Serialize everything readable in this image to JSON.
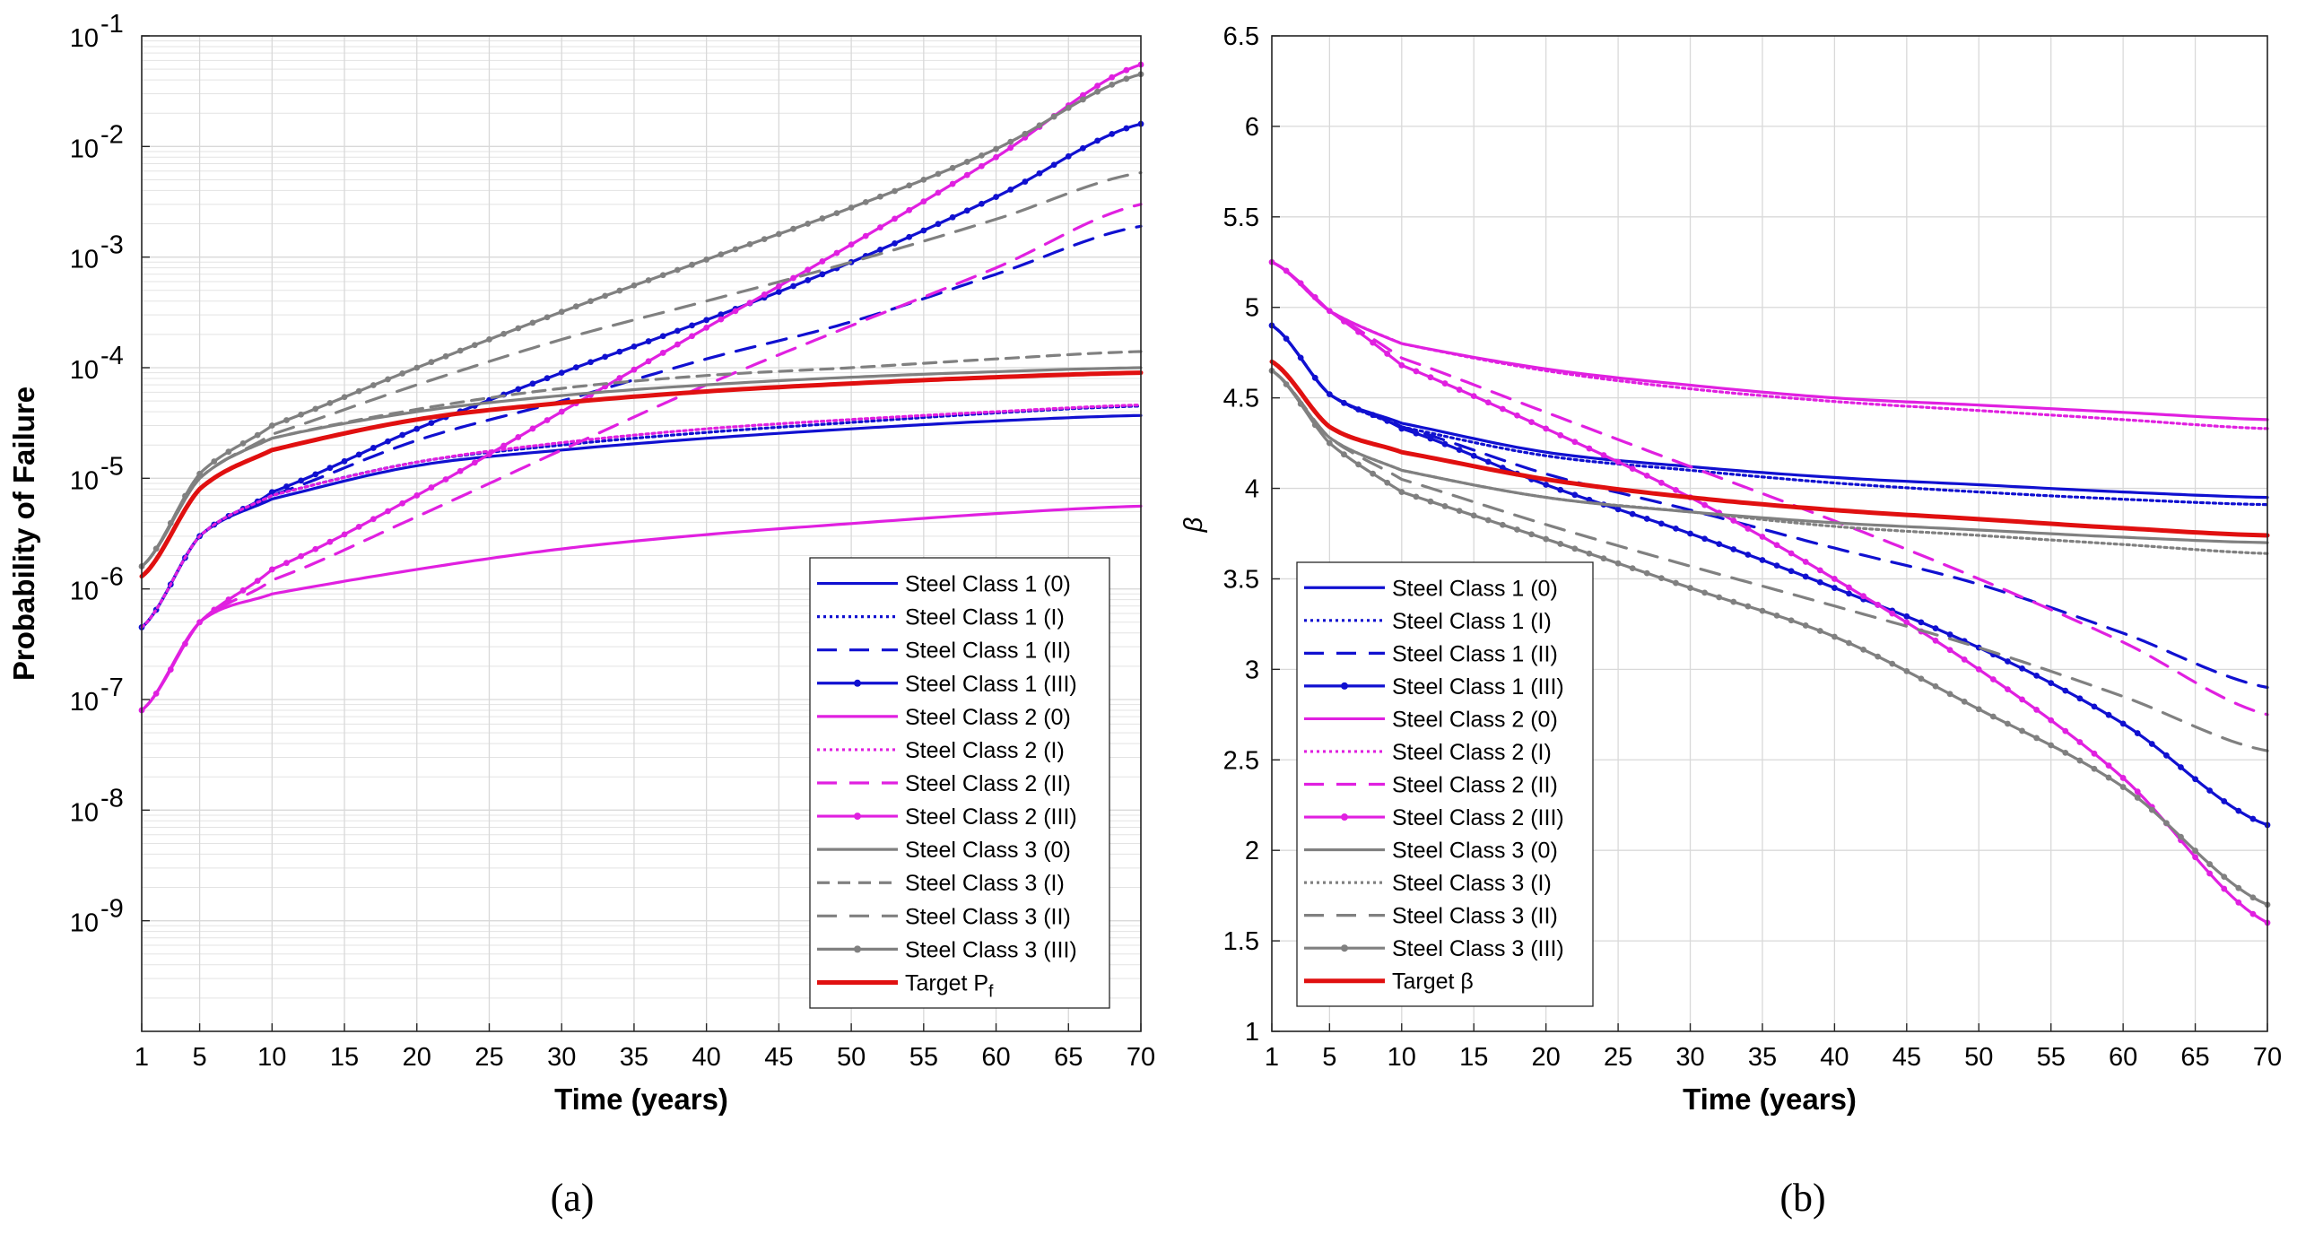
{
  "chart_data": [
    {
      "type": "line",
      "panel_label": "(a)",
      "xlabel": "Time (years)",
      "ylabel": "Probability of Failure",
      "yscale": "log",
      "xlim": [
        1,
        70
      ],
      "ylim": [
        1e-10,
        0.1
      ],
      "grid": true,
      "minor_grid": true,
      "legend_placement": "bottom-right",
      "x_ticks": [
        1,
        5,
        10,
        15,
        20,
        25,
        30,
        35,
        40,
        45,
        50,
        55,
        60,
        65,
        70
      ],
      "y_ticks": [
        {
          "value": 1e-09,
          "base": "10",
          "exp": "-9"
        },
        {
          "value": 1e-08,
          "base": "10",
          "exp": "-8"
        },
        {
          "value": 1e-07,
          "base": "10",
          "exp": "-7"
        },
        {
          "value": 1e-06,
          "base": "10",
          "exp": "-6"
        },
        {
          "value": 1e-05,
          "base": "10",
          "exp": "-5"
        },
        {
          "value": 0.0001,
          "base": "10",
          "exp": "-4"
        },
        {
          "value": 0.001,
          "base": "10",
          "exp": "-3"
        },
        {
          "value": 0.01,
          "base": "10",
          "exp": "-2"
        },
        {
          "value": 0.1,
          "base": "10",
          "exp": "-1"
        }
      ],
      "series": [
        {
          "name": "Steel Class 1 (0)",
          "color": "#1010d0",
          "style": "solid",
          "x": [
            1,
            5,
            10,
            20,
            30,
            40,
            50,
            60,
            70
          ],
          "y": [
            4.5e-07,
            3e-06,
            6.5e-06,
            1.3e-05,
            1.8e-05,
            2.3e-05,
            2.8e-05,
            3.3e-05,
            3.7e-05
          ]
        },
        {
          "name": "Steel Class 1 (I)",
          "color": "#1010d0",
          "style": "dotted",
          "x": [
            1,
            5,
            10,
            20,
            30,
            40,
            50,
            60,
            70
          ],
          "y": [
            4.5e-07,
            3e-06,
            7e-06,
            1.4e-05,
            2e-05,
            2.6e-05,
            3.2e-05,
            3.9e-05,
            4.5e-05
          ]
        },
        {
          "name": "Steel Class 1 (II)",
          "color": "#1010d0",
          "style": "dashed",
          "x": [
            1,
            5,
            10,
            20,
            30,
            40,
            50,
            60,
            70
          ],
          "y": [
            4.5e-07,
            3e-06,
            7e-06,
            2.2e-05,
            5e-05,
            0.00012,
            0.00026,
            0.0007,
            0.0019
          ]
        },
        {
          "name": "Steel Class 1 (III)",
          "color": "#1010d0",
          "style": "marker",
          "x": [
            1,
            5,
            10,
            20,
            30,
            40,
            50,
            60,
            70
          ],
          "y": [
            4.5e-07,
            3e-06,
            7.5e-06,
            2.8e-05,
            9e-05,
            0.00027,
            0.0009,
            0.0035,
            0.016
          ]
        },
        {
          "name": "Steel Class 2 (0)",
          "color": "#e020e0",
          "style": "solid",
          "x": [
            1,
            5,
            10,
            20,
            30,
            40,
            50,
            60,
            70
          ],
          "y": [
            8e-08,
            5e-07,
            9e-07,
            1.5e-06,
            2.3e-06,
            3.1e-06,
            3.9e-06,
            4.8e-06,
            5.6e-06
          ]
        },
        {
          "name": "Steel Class 2 (I)",
          "color": "#e020e0",
          "style": "dotted",
          "x": [
            1,
            5,
            10,
            20,
            30,
            40,
            50,
            60,
            70
          ],
          "y": [
            4.5e-07,
            3e-06,
            7e-06,
            1.4e-05,
            2.1e-05,
            2.8e-05,
            3.4e-05,
            4e-05,
            4.6e-05
          ]
        },
        {
          "name": "Steel Class 2 (II)",
          "color": "#e020e0",
          "style": "dashed",
          "x": [
            1,
            5,
            10,
            20,
            30,
            40,
            50,
            60,
            70
          ],
          "y": [
            8e-08,
            5e-07,
            1.2e-06,
            4.5e-06,
            1.8e-05,
            7e-05,
            0.00024,
            0.0008,
            0.003
          ]
        },
        {
          "name": "Steel Class 2 (III)",
          "color": "#e020e0",
          "style": "marker",
          "x": [
            1,
            5,
            10,
            20,
            30,
            40,
            50,
            60,
            70
          ],
          "y": [
            8e-08,
            5e-07,
            1.5e-06,
            7e-06,
            4e-05,
            0.00023,
            0.0013,
            0.008,
            0.055
          ]
        },
        {
          "name": "Steel Class 3 (0)",
          "color": "#808080",
          "style": "solid",
          "x": [
            1,
            5,
            10,
            20,
            30,
            40,
            50,
            60,
            70
          ],
          "y": [
            1.6e-06,
            1e-05,
            2.3e-05,
            4e-05,
            5.6e-05,
            7e-05,
            8.2e-05,
            9.2e-05,
            0.0001
          ]
        },
        {
          "name": "Steel Class 3 (I)",
          "color": "#808080",
          "style": "dashed-fine",
          "x": [
            1,
            5,
            10,
            20,
            30,
            40,
            50,
            60,
            70
          ],
          "y": [
            1.6e-06,
            1e-05,
            2.3e-05,
            4.2e-05,
            6.5e-05,
            8.5e-05,
            0.0001,
            0.00012,
            0.00014
          ]
        },
        {
          "name": "Steel Class 3 (II)",
          "color": "#808080",
          "style": "dashed",
          "x": [
            1,
            5,
            10,
            20,
            30,
            40,
            50,
            60,
            70
          ],
          "y": [
            1.6e-06,
            1e-05,
            2.5e-05,
            7e-05,
            0.00018,
            0.0004,
            0.0009,
            0.0022,
            0.0058
          ]
        },
        {
          "name": "Steel Class 3 (III)",
          "color": "#808080",
          "style": "marker",
          "x": [
            1,
            5,
            10,
            20,
            30,
            40,
            50,
            60,
            70
          ],
          "y": [
            1.6e-06,
            1.1e-05,
            3e-05,
            0.0001,
            0.00032,
            0.00095,
            0.0028,
            0.0095,
            0.045
          ]
        },
        {
          "name": "Target P",
          "name_sub": "f",
          "color": "#e01010",
          "style": "solid-thick",
          "x": [
            1,
            5,
            10,
            20,
            30,
            40,
            50,
            60,
            70
          ],
          "y": [
            1.3e-06,
            8e-06,
            1.8e-05,
            3.4e-05,
            4.8e-05,
            6.1e-05,
            7.2e-05,
            8.2e-05,
            9e-05
          ]
        }
      ]
    },
    {
      "type": "line",
      "panel_label": "(b)",
      "xlabel": "Time (years)",
      "ylabel": "β",
      "yscale": "linear",
      "xlim": [
        1,
        70
      ],
      "ylim": [
        1,
        6.5
      ],
      "grid": true,
      "legend_placement": "bottom-left",
      "x_ticks": [
        1,
        5,
        10,
        15,
        20,
        25,
        30,
        35,
        40,
        45,
        50,
        55,
        60,
        65,
        70
      ],
      "y_ticks": [
        "1",
        "1.5",
        "2",
        "2.5",
        "3",
        "3.5",
        "4",
        "4.5",
        "5",
        "5.5",
        "6",
        "6.5"
      ],
      "series": [
        {
          "name": "Steel Class 1 (0)",
          "color": "#1010d0",
          "style": "solid",
          "x": [
            1,
            5,
            10,
            20,
            30,
            40,
            50,
            60,
            70
          ],
          "y": [
            4.9,
            4.52,
            4.36,
            4.2,
            4.12,
            4.06,
            4.02,
            3.98,
            3.95
          ]
        },
        {
          "name": "Steel Class 1 (I)",
          "color": "#1010d0",
          "style": "dotted",
          "x": [
            1,
            5,
            10,
            20,
            30,
            40,
            50,
            60,
            70
          ],
          "y": [
            4.9,
            4.52,
            4.34,
            4.18,
            4.1,
            4.03,
            3.98,
            3.94,
            3.91
          ]
        },
        {
          "name": "Steel Class 1 (II)",
          "color": "#1010d0",
          "style": "dashed",
          "x": [
            1,
            5,
            10,
            20,
            30,
            40,
            50,
            60,
            70
          ],
          "y": [
            4.9,
            4.52,
            4.34,
            4.08,
            3.88,
            3.67,
            3.47,
            3.2,
            2.9
          ]
        },
        {
          "name": "Steel Class 1 (III)",
          "color": "#1010d0",
          "style": "marker",
          "x": [
            1,
            5,
            10,
            20,
            30,
            40,
            50,
            60,
            70
          ],
          "y": [
            4.9,
            4.52,
            4.33,
            4.02,
            3.75,
            3.45,
            3.12,
            2.7,
            2.14
          ]
        },
        {
          "name": "Steel Class 2 (0)",
          "color": "#e020e0",
          "style": "solid",
          "x": [
            1,
            5,
            10,
            20,
            30,
            40,
            50,
            60,
            70
          ],
          "y": [
            5.25,
            4.98,
            4.8,
            4.66,
            4.57,
            4.5,
            4.46,
            4.42,
            4.38
          ]
        },
        {
          "name": "Steel Class 2 (I)",
          "color": "#e020e0",
          "style": "dotted",
          "x": [
            1,
            5,
            10,
            20,
            30,
            40,
            50,
            60,
            70
          ],
          "y": [
            5.25,
            4.98,
            4.8,
            4.65,
            4.55,
            4.48,
            4.43,
            4.38,
            4.33
          ]
        },
        {
          "name": "Steel Class 2 (II)",
          "color": "#e020e0",
          "style": "dashed",
          "x": [
            1,
            5,
            10,
            20,
            30,
            40,
            50,
            60,
            70
          ],
          "y": [
            5.25,
            4.98,
            4.72,
            4.42,
            4.12,
            3.82,
            3.5,
            3.15,
            2.75
          ]
        },
        {
          "name": "Steel Class 2 (III)",
          "color": "#e020e0",
          "style": "marker",
          "x": [
            1,
            5,
            10,
            20,
            30,
            40,
            50,
            60,
            70
          ],
          "y": [
            5.25,
            4.98,
            4.68,
            4.33,
            3.95,
            3.5,
            3.0,
            2.4,
            1.6
          ]
        },
        {
          "name": "Steel Class 3 (0)",
          "color": "#808080",
          "style": "solid",
          "x": [
            1,
            5,
            10,
            20,
            30,
            40,
            50,
            60,
            70
          ],
          "y": [
            4.65,
            4.28,
            4.1,
            3.95,
            3.87,
            3.81,
            3.77,
            3.73,
            3.7
          ]
        },
        {
          "name": "Steel Class 3 (I)",
          "color": "#808080",
          "style": "dotted",
          "x": [
            1,
            5,
            10,
            20,
            30,
            40,
            50,
            60,
            70
          ],
          "y": [
            4.65,
            4.28,
            4.1,
            3.95,
            3.87,
            3.79,
            3.74,
            3.69,
            3.64
          ]
        },
        {
          "name": "Steel Class 3 (II)",
          "color": "#808080",
          "style": "dashed",
          "x": [
            1,
            5,
            10,
            20,
            30,
            40,
            50,
            60,
            70
          ],
          "y": [
            4.65,
            4.28,
            4.05,
            3.8,
            3.57,
            3.35,
            3.12,
            2.85,
            2.55
          ]
        },
        {
          "name": "Steel Class 3 (III)",
          "color": "#808080",
          "style": "marker",
          "x": [
            1,
            5,
            10,
            20,
            30,
            40,
            50,
            60,
            70
          ],
          "y": [
            4.65,
            4.25,
            3.98,
            3.72,
            3.45,
            3.18,
            2.78,
            2.35,
            1.7
          ]
        },
        {
          "name": "Target β",
          "color": "#e01010",
          "style": "solid-thick",
          "x": [
            1,
            5,
            10,
            20,
            30,
            40,
            50,
            60,
            70
          ],
          "y": [
            4.7,
            4.34,
            4.2,
            4.05,
            3.95,
            3.88,
            3.83,
            3.78,
            3.74
          ]
        }
      ]
    }
  ]
}
